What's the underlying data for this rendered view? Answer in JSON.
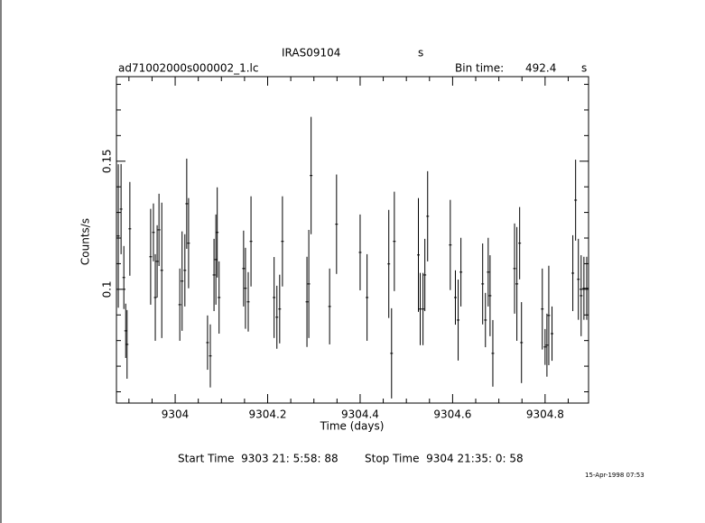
{
  "chart_data": {
    "type": "errorbar",
    "title": "IRAS09104",
    "title_unit": "s",
    "file_name": "ad71002000s000002_1.lc",
    "bin_time_label": "Bin time:",
    "bin_time": 492.4,
    "bin_time_unit": "s",
    "xlabel": "Time (days)",
    "ylabel": "Counts/s",
    "start_time": "Start Time  9303 21: 5:58: 88",
    "stop_time": "Stop Time  9304 21:35: 0: 58",
    "timestamp": "15-Apr-1998 07:53",
    "color": "#000000",
    "xlim": [
      9303.873,
      9304.894
    ],
    "ylim": [
      0.0556,
      0.183
    ],
    "xticks": [
      9304,
      9304.2,
      9304.4,
      9304.6,
      9304.8
    ],
    "yticks": [
      0.1,
      0.15
    ],
    "x_minor_ticks": [
      9303.9,
      9303.95,
      9304.05,
      9304.1,
      9304.15,
      9304.25,
      9304.3,
      9304.35,
      9304.45,
      9304.5,
      9304.55,
      9304.65,
      9304.7,
      9304.75,
      9304.85
    ],
    "y_minor_ticks": [
      0.06,
      0.07,
      0.08,
      0.09,
      0.11,
      0.12,
      0.13,
      0.14,
      0.16,
      0.17,
      0.18
    ],
    "x": [
      9303.877,
      9303.883,
      9303.889,
      9303.893,
      9303.896,
      9303.902,
      9303.947,
      9303.953,
      9303.957,
      9303.961,
      9303.965,
      9303.971,
      9304.01,
      9304.015,
      9304.021,
      9304.025,
      9304.029,
      9304.07,
      9304.076,
      9304.084,
      9304.088,
      9304.091,
      9304.095,
      9304.148,
      9304.152,
      9304.158,
      9304.164,
      9304.214,
      9304.22,
      9304.226,
      9304.232,
      9304.285,
      9304.289,
      9304.294,
      9304.334,
      9304.349,
      9304.4,
      9304.415,
      9304.462,
      9304.468,
      9304.474,
      9304.526,
      9304.53,
      9304.536,
      9304.54,
      9304.546,
      9304.595,
      9304.606,
      9304.612,
      9304.618,
      9304.665,
      9304.671,
      9304.677,
      9304.681,
      9304.687,
      9304.734,
      9304.739,
      9304.745,
      9304.749,
      9304.794,
      9304.8,
      9304.804,
      9304.808,
      9304.815,
      9304.86,
      9304.866,
      9304.872,
      9304.878,
      9304.884,
      9304.89
    ],
    "values": [
      0.1208,
      0.1313,
      0.1046,
      0.0838,
      0.0785,
      0.1236,
      0.1127,
      0.1222,
      0.0968,
      0.1109,
      0.1232,
      0.1074,
      0.094,
      0.1032,
      0.1074,
      0.1334,
      0.118,
      0.0792,
      0.074,
      0.1056,
      0.1116,
      0.1222,
      0.0968,
      0.1081,
      0.1004,
      0.0951,
      0.1187,
      0.0968,
      0.0891,
      0.0923,
      0.1187,
      0.0951,
      0.1021,
      0.1444,
      0.0933,
      0.1254,
      0.1144,
      0.0968,
      0.1099,
      0.075,
      0.1187,
      0.1134,
      0.0923,
      0.0923,
      0.1056,
      0.1285,
      0.1173,
      0.0968,
      0.088,
      0.1067,
      0.1021,
      0.088,
      0.1067,
      0.0975,
      0.075,
      0.1081,
      0.1021,
      0.118,
      0.0792,
      0.0923,
      0.0775,
      0.0782,
      0.0898,
      0.0827,
      0.1063,
      0.1348,
      0.1039,
      0.0975,
      0.1004,
      0.1004
    ],
    "errors": [
      0.028,
      0.0176,
      0.0123,
      0.0106,
      0.0134,
      0.0183,
      0.0187,
      0.0113,
      0.0169,
      0.0141,
      0.0141,
      0.0264,
      0.0141,
      0.0194,
      0.0141,
      0.0176,
      0.0176,
      0.0106,
      0.0123,
      0.0141,
      0.0176,
      0.0176,
      0.0141,
      0.0148,
      0.0158,
      0.0116,
      0.0176,
      0.0158,
      0.0123,
      0.0134,
      0.0176,
      0.0176,
      0.0211,
      0.0229,
      0.0148,
      0.0194,
      0.0148,
      0.0169,
      0.0211,
      0.0176,
      0.0194,
      0.0222,
      0.0141,
      0.0141,
      0.0141,
      0.0176,
      0.0176,
      0.0106,
      0.0158,
      0.0134,
      0.0158,
      0.0106,
      0.0134,
      0.0158,
      0.013,
      0.0176,
      0.0222,
      0.0141,
      0.0158,
      0.0158,
      0.007,
      0.0123,
      0.0194,
      0.0106,
      0.0148,
      0.0158,
      0.0158,
      0.0158,
      0.0123,
      0.0123
    ]
  }
}
